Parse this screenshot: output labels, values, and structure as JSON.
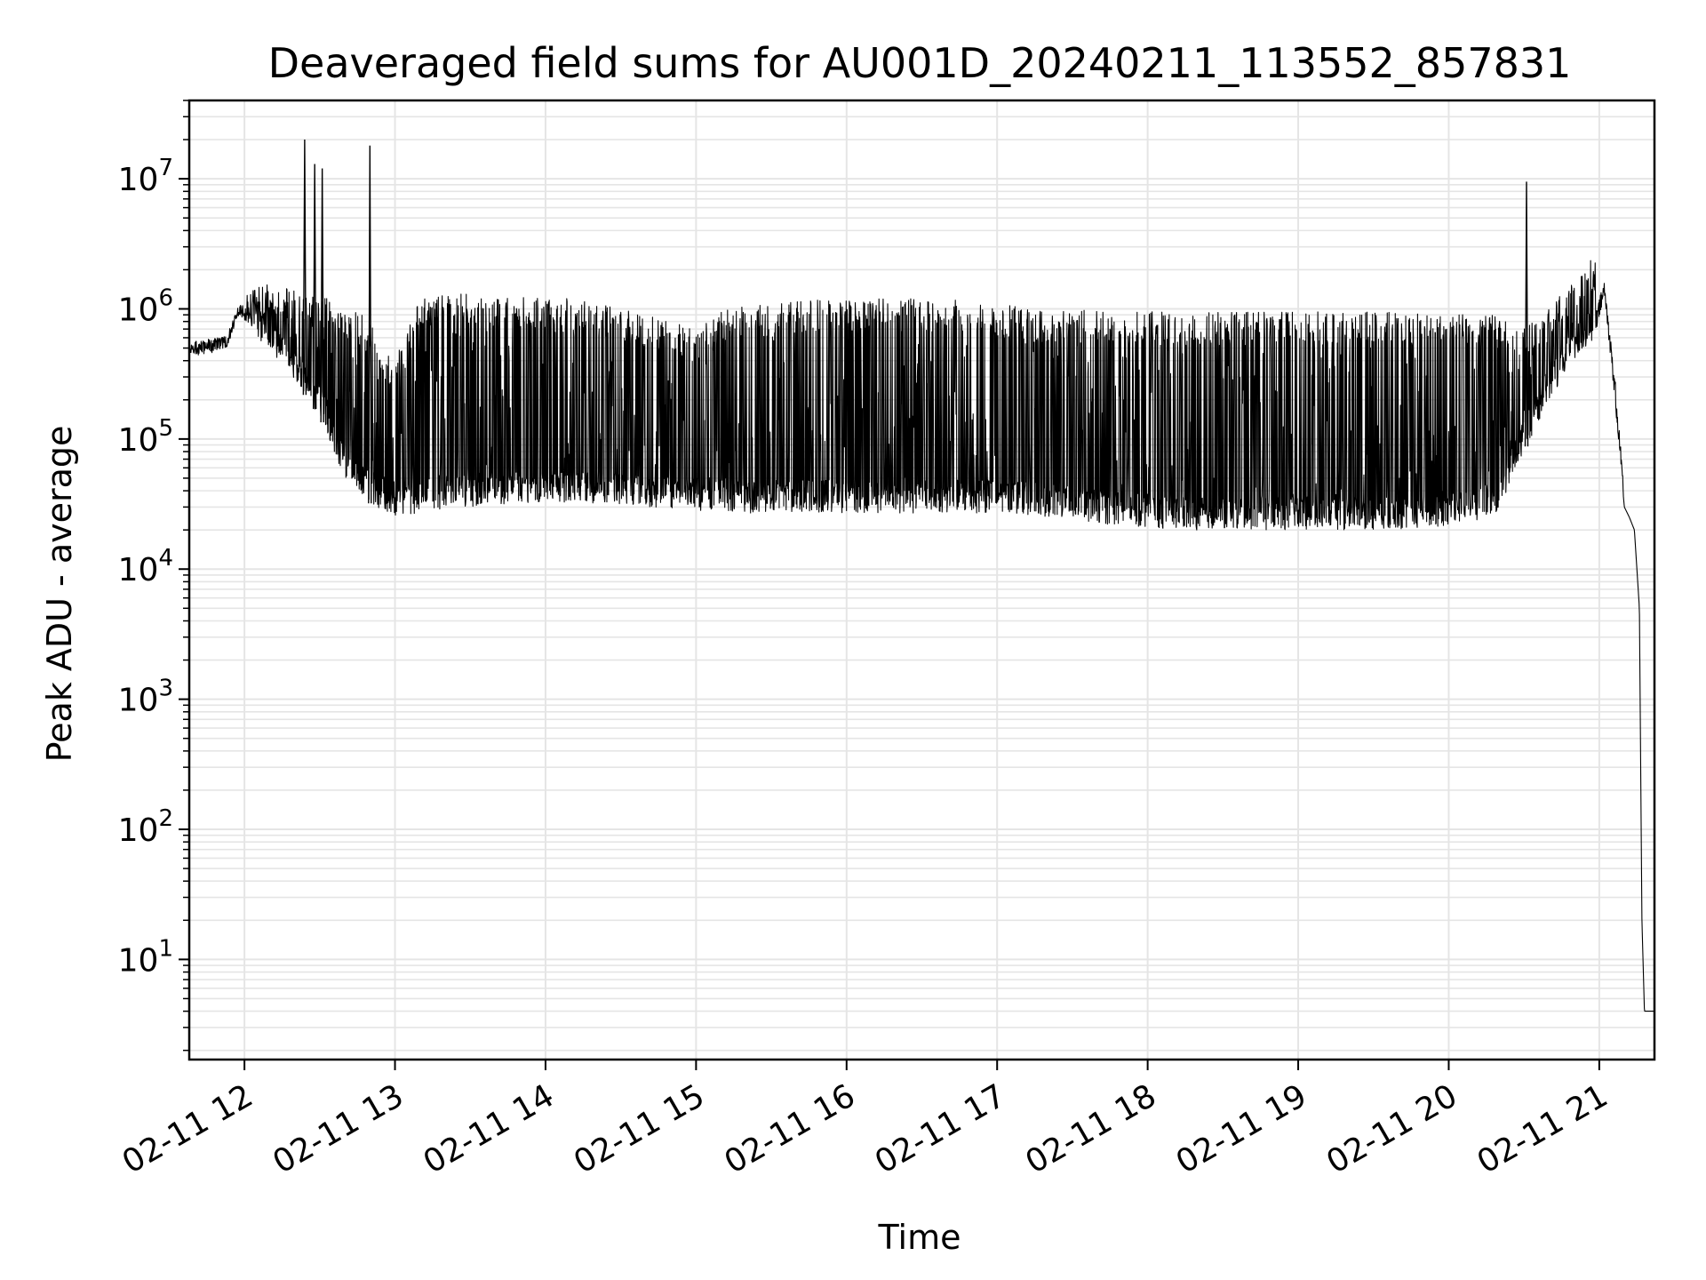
{
  "chart_data": {
    "type": "line",
    "title": "Deaveraged field sums for AU001D_20240211_113552_857831",
    "xlabel": "Time",
    "ylabel": "Peak ADU - average",
    "yscale": "log",
    "ylim": [
      1.7,
      40000000
    ],
    "xlim": [
      "2024-02-11 11:38",
      "2024-02-11 21:22"
    ],
    "grid": true,
    "x_ticks": [
      "02-11 12",
      "02-11 13",
      "02-11 14",
      "02-11 15",
      "02-11 16",
      "02-11 17",
      "02-11 18",
      "02-11 19",
      "02-11 20",
      "02-11 21"
    ],
    "y_ticks": [
      {
        "base": "10",
        "exp": "1",
        "value": 10
      },
      {
        "base": "10",
        "exp": "2",
        "value": 100
      },
      {
        "base": "10",
        "exp": "3",
        "value": 1000
      },
      {
        "base": "10",
        "exp": "4",
        "value": 10000
      },
      {
        "base": "10",
        "exp": "5",
        "value": 100000
      },
      {
        "base": "10",
        "exp": "6",
        "value": 1000000
      },
      {
        "base": "10",
        "exp": "7",
        "value": 10000000
      }
    ],
    "line_color": "#000000",
    "grid_color": "#e5e5e5",
    "series": [
      {
        "x": [
          "11:38",
          "11:47",
          "11:53",
          "11:58",
          "12:03",
          "12:10",
          "12:20",
          "12:30",
          "12:40",
          "12:50",
          "12:53",
          "13:00",
          "13:10",
          "13:20",
          "13:30",
          "13:40",
          "13:50",
          "14:00",
          "14:10",
          "14:20",
          "14:30",
          "14:40",
          "14:50",
          "15:00",
          "15:15",
          "15:30",
          "15:45",
          "16:00",
          "16:15",
          "16:30",
          "16:45",
          "17:00",
          "17:15",
          "17:30",
          "17:45",
          "18:00",
          "18:15",
          "18:30",
          "18:45",
          "19:00",
          "19:15",
          "19:30",
          "19:45",
          "20:00",
          "20:10",
          "20:20",
          "20:30",
          "20:40",
          "20:50",
          "20:58",
          "21:02",
          "21:05",
          "21:08",
          "21:10",
          "21:12",
          "21:14",
          "21:16",
          "21:17",
          "21:18",
          "21:20",
          "21:22"
        ],
        "low": [
          430000,
          460000,
          500000,
          900000,
          700000,
          450000,
          280000,
          150000,
          50000,
          32000,
          30000,
          26000,
          27000,
          29000,
          30000,
          31000,
          32000,
          33000,
          32000,
          32000,
          31000,
          30000,
          29000,
          28000,
          27000,
          27000,
          27000,
          27000,
          27000,
          27000,
          27000,
          27000,
          26000,
          24000,
          22000,
          21000,
          20000,
          20000,
          20000,
          20000,
          20000,
          20000,
          20000,
          21000,
          23000,
          28000,
          80000,
          200000,
          400000,
          600000,
          1200000,
          350000,
          80000,
          30000,
          25000,
          20000,
          5000,
          20,
          4,
          4,
          4
        ],
        "high": [
          560000,
          600000,
          620000,
          1100000,
          1400000,
          1600000,
          1500000,
          1400000,
          1000000,
          900000,
          500000,
          400000,
          1200000,
          1300000,
          1300000,
          1300000,
          1300000,
          1200000,
          1200000,
          1100000,
          1000000,
          900000,
          800000,
          700000,
          1100000,
          1100000,
          1200000,
          1200000,
          1200000,
          1200000,
          1200000,
          1100000,
          1000000,
          1000000,
          950000,
          950000,
          950000,
          950000,
          950000,
          950000,
          950000,
          950000,
          950000,
          950000,
          900000,
          900000,
          700000,
          1000000,
          1800000,
          2500000,
          1800000,
          600000,
          120000,
          35000,
          30000,
          25000,
          5000,
          20,
          4,
          4,
          4
        ]
      }
    ],
    "spikes": [
      {
        "x": "12:24",
        "y": 20000000
      },
      {
        "x": "12:28",
        "y": 13000000
      },
      {
        "x": "12:31",
        "y": 12000000
      },
      {
        "x": "12:50",
        "y": 18000000
      },
      {
        "x": "20:31",
        "y": 9500000
      }
    ]
  }
}
